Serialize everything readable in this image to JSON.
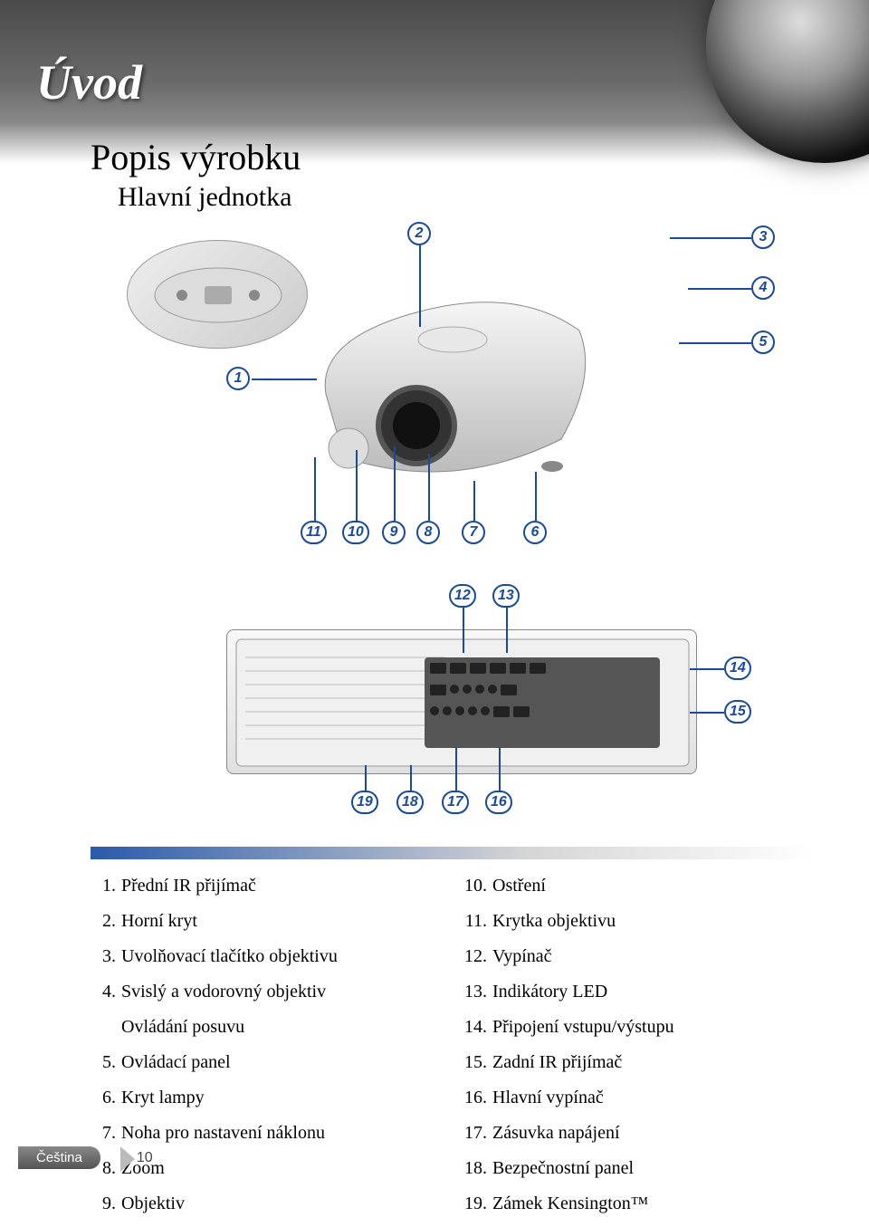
{
  "section_title": "Úvod",
  "heading": "Popis výrobku",
  "subheading": "Hlavní jednotka",
  "callouts_front": [
    "1",
    "2",
    "3",
    "4",
    "5",
    "6",
    "7",
    "8",
    "9",
    "10",
    "11"
  ],
  "callouts_rear": [
    "12",
    "13",
    "14",
    "15",
    "16",
    "17",
    "18",
    "19"
  ],
  "accent_color": "#1a4a9a",
  "left_list": [
    {
      "n": "1.",
      "t": "Přední IR přijímač"
    },
    {
      "n": "2.",
      "t": "Horní kryt"
    },
    {
      "n": "3.",
      "t": "Uvolňovací tlačítko objektivu"
    },
    {
      "n": "4.",
      "t": "Svislý a vodorovný objektiv"
    },
    {
      "n": "",
      "t": "Ovládání posuvu"
    },
    {
      "n": "5.",
      "t": "Ovládací panel"
    },
    {
      "n": "6.",
      "t": "Kryt lampy"
    },
    {
      "n": "7.",
      "t": "Noha pro nastavení náklonu"
    },
    {
      "n": "8.",
      "t": "Zoom"
    },
    {
      "n": "9.",
      "t": "Objektiv"
    }
  ],
  "right_list": [
    {
      "n": "10.",
      "t": "Ostření"
    },
    {
      "n": "11.",
      "t": "Krytka objektivu"
    },
    {
      "n": "12.",
      "t": "Vypínač"
    },
    {
      "n": "13.",
      "t": "Indikátory LED"
    },
    {
      "n": "14.",
      "t": "Připojení vstupu/výstupu"
    },
    {
      "n": "15.",
      "t": "Zadní IR přijímač"
    },
    {
      "n": "16.",
      "t": "Hlavní vypínač"
    },
    {
      "n": "17.",
      "t": "Zásuvka napájení"
    },
    {
      "n": "18.",
      "t": "Bezpečnostní panel"
    },
    {
      "n": "19.",
      "t": "Zámek Kensington™"
    }
  ],
  "footer_lang": "Čeština",
  "footer_page": "10"
}
